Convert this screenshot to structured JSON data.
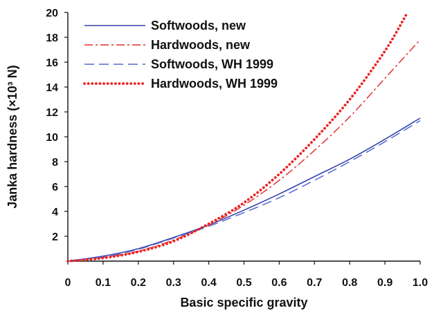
{
  "chart_data": {
    "type": "line",
    "title": "",
    "xlabel": "Basic specific gravity",
    "ylabel": "Janka hardness (×10³ N)",
    "xlim": [
      0,
      1.0
    ],
    "ylim": [
      0,
      20
    ],
    "x_ticks": [
      "0",
      "0.1",
      "0.2",
      "0.3",
      "0.4",
      "0.5",
      "0.6",
      "0.7",
      "0.8",
      "0.9",
      "1.0"
    ],
    "y_ticks": [
      "2",
      "4",
      "6",
      "8",
      "10",
      "12",
      "14",
      "16",
      "18",
      "20"
    ],
    "grid": false,
    "legend_position": "top-left",
    "x": [
      0,
      0.1,
      0.2,
      0.3,
      0.4,
      0.5,
      0.6,
      0.7,
      0.8,
      0.9,
      1.0
    ],
    "series": [
      {
        "name": "Softwoods, new",
        "color": "#3344aa",
        "style": "solid",
        "x": [
          0,
          0.1,
          0.2,
          0.3,
          0.4,
          0.5,
          0.6,
          0.7,
          0.8,
          0.9,
          1.0
        ],
        "values": [
          0,
          0.4,
          1.0,
          1.9,
          2.9,
          4.1,
          5.4,
          6.8,
          8.2,
          9.8,
          11.5
        ]
      },
      {
        "name": "Hardwoods, new",
        "color": "#e03030",
        "style": "dashdot",
        "x": [
          0,
          0.1,
          0.2,
          0.3,
          0.4,
          0.5,
          0.6,
          0.7,
          0.8,
          0.9,
          1.0
        ],
        "values": [
          0,
          0.3,
          0.8,
          1.7,
          2.9,
          4.5,
          6.5,
          8.9,
          11.6,
          14.7,
          17.8
        ]
      },
      {
        "name": "Softwoods, WH 1999",
        "color": "#5566cc",
        "style": "dashed",
        "x": [
          0,
          0.1,
          0.2,
          0.3,
          0.4,
          0.5,
          0.6,
          0.7,
          0.8,
          0.9,
          1.0
        ],
        "values": [
          0,
          0.35,
          0.95,
          1.85,
          2.8,
          3.9,
          5.1,
          6.5,
          8.0,
          9.6,
          11.3
        ]
      },
      {
        "name": "Hardwoods, WH 1999",
        "color": "#ee2222",
        "style": "dotted",
        "x": [
          0,
          0.1,
          0.2,
          0.3,
          0.4,
          0.5,
          0.6,
          0.7,
          0.8,
          0.9,
          0.96
        ],
        "values": [
          0,
          0.25,
          0.75,
          1.6,
          3.0,
          4.7,
          7.0,
          9.8,
          13.0,
          16.9,
          19.8
        ]
      }
    ]
  }
}
